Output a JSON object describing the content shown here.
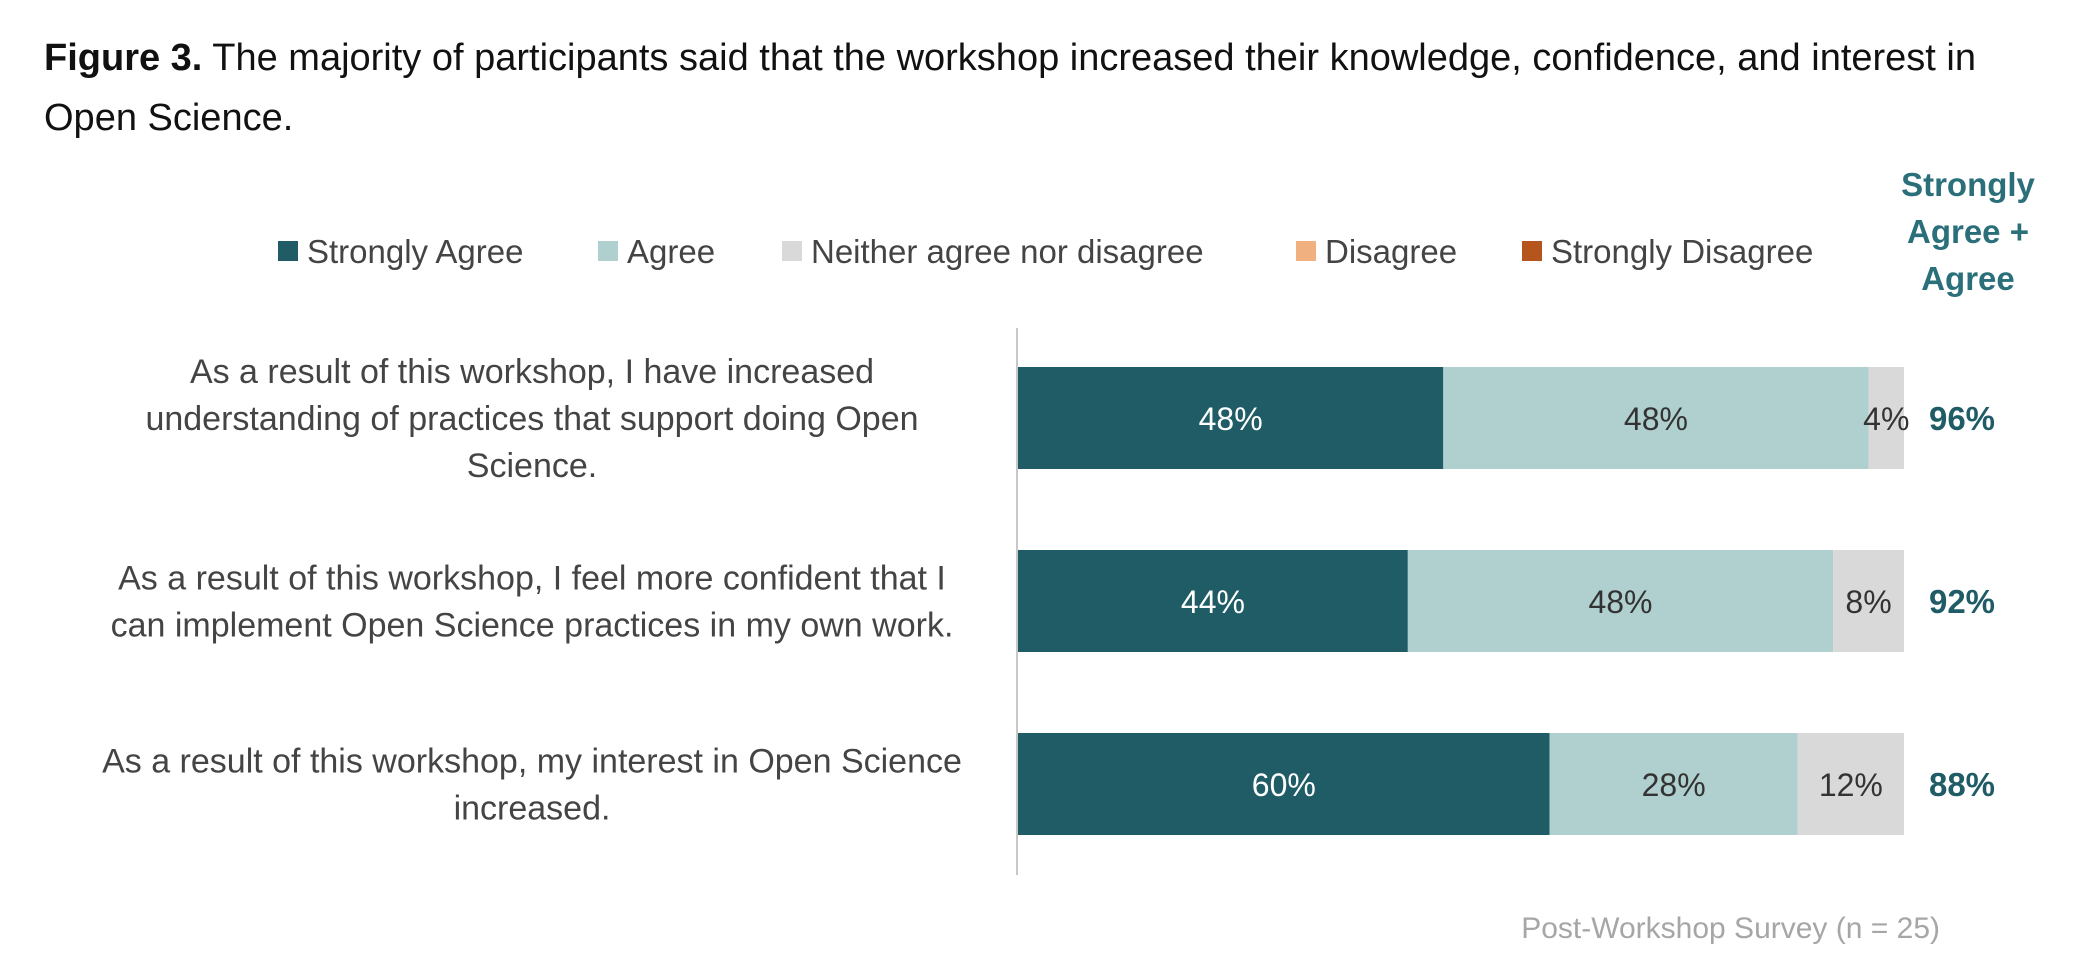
{
  "caption": {
    "prefix": "Figure 3.",
    "text": " The majority of participants said that the workshop increased their knowledge, confidence, and interest in Open Science."
  },
  "chart_data": {
    "type": "bar",
    "orientation": "horizontal",
    "stacked": true,
    "value_format": "percent",
    "xlim": [
      0,
      100
    ],
    "grid": false,
    "legend_position": "top",
    "categories": [
      [
        "As a result of this workshop, I have increased",
        "understanding of practices that support doing Open",
        "Science."
      ],
      [
        "As a result of this workshop, I feel more confident that I",
        "can implement Open Science practices in my own work."
      ],
      [
        "As a result of this workshop, my interest in Open Science",
        "increased."
      ]
    ],
    "series": [
      {
        "name": "Strongly Agree",
        "color": "#1f5c66",
        "label_color": "#ffffff",
        "values": [
          48,
          44,
          60
        ],
        "labels": [
          "48%",
          "44%",
          "60%"
        ]
      },
      {
        "name": "Agree",
        "color": "#b0cfcf",
        "label_color": "#333333",
        "values": [
          48,
          48,
          28
        ],
        "labels": [
          "48%",
          "48%",
          "28%"
        ]
      },
      {
        "name": "Neither agree nor disagree",
        "color": "#d9d9d9",
        "label_color": "#333333",
        "values": [
          4,
          8,
          12
        ],
        "labels": [
          "4%",
          "8%",
          "12%"
        ]
      },
      {
        "name": "Disagree",
        "color": "#f0b080",
        "label_color": "#333333",
        "values": [
          0,
          0,
          0
        ],
        "labels": [
          "",
          "",
          ""
        ]
      },
      {
        "name": "Strongly Disagree",
        "color": "#b5541c",
        "label_color": "#ffffff",
        "values": [
          0,
          0,
          0
        ],
        "labels": [
          "",
          "",
          ""
        ]
      }
    ],
    "totals": {
      "header": [
        "Strongly",
        "Agree +",
        "Agree"
      ],
      "values": [
        "96%",
        "92%",
        "88%"
      ]
    },
    "source_note": "Post-Workshop Survey (n = 25)"
  }
}
